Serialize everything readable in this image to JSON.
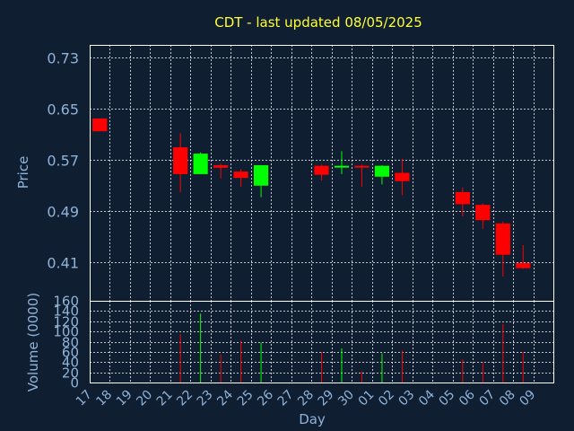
{
  "colors": {
    "background": "#0f1e31",
    "text": "#8fb3d9",
    "title": "#ffff33",
    "grid": "#ffffff",
    "up": "#00ff00",
    "down": "#ff0000"
  },
  "chart_data": {
    "type": "candlestick",
    "title": "CDT - last updated 08/05/2025",
    "xlabel": "Day",
    "ylabel": "Price",
    "volume_label": "Volume (0000)",
    "grid": true,
    "x_tick_labels": [
      "17",
      "18",
      "19",
      "20",
      "21",
      "22",
      "23",
      "24",
      "25",
      "26",
      "27",
      "28",
      "29",
      "30",
      "01",
      "02",
      "03",
      "04",
      "05",
      "06",
      "07",
      "08",
      "09"
    ],
    "price_ylim": [
      0.35,
      0.75
    ],
    "price_ticks": [
      0.41,
      0.49,
      0.57,
      0.65,
      0.73
    ],
    "volume_ylim": [
      0,
      160
    ],
    "volume_ticks": [
      0,
      20,
      40,
      60,
      80,
      100,
      120,
      140,
      160
    ],
    "candles": [
      {
        "day": "17",
        "open": 0.635,
        "close": 0.615,
        "high": 0.635,
        "low": 0.615,
        "volume": 0
      },
      {
        "day": "21",
        "open": 0.59,
        "close": 0.548,
        "high": 0.612,
        "low": 0.52,
        "volume": 95
      },
      {
        "day": "22",
        "open": 0.548,
        "close": 0.58,
        "high": 0.582,
        "low": 0.548,
        "volume": 135
      },
      {
        "day": "23",
        "open": 0.562,
        "close": 0.558,
        "high": 0.564,
        "low": 0.541,
        "volume": 55
      },
      {
        "day": "24",
        "open": 0.552,
        "close": 0.542,
        "high": 0.556,
        "low": 0.528,
        "volume": 82
      },
      {
        "day": "25",
        "open": 0.53,
        "close": 0.562,
        "high": 0.562,
        "low": 0.512,
        "volume": 78
      },
      {
        "day": "28",
        "open": 0.561,
        "close": 0.547,
        "high": 0.563,
        "low": 0.538,
        "volume": 60
      },
      {
        "day": "29",
        "open": 0.559,
        "close": 0.561,
        "high": 0.584,
        "low": 0.548,
        "volume": 67
      },
      {
        "day": "30",
        "open": 0.561,
        "close": 0.559,
        "high": 0.563,
        "low": 0.528,
        "volume": 22
      },
      {
        "day": "01",
        "open": 0.544,
        "close": 0.561,
        "high": 0.562,
        "low": 0.532,
        "volume": 57
      },
      {
        "day": "02",
        "open": 0.55,
        "close": 0.537,
        "high": 0.572,
        "low": 0.515,
        "volume": 63
      },
      {
        "day": "05",
        "open": 0.52,
        "close": 0.501,
        "high": 0.527,
        "low": 0.482,
        "volume": 45
      },
      {
        "day": "06",
        "open": 0.5,
        "close": 0.476,
        "high": 0.502,
        "low": 0.462,
        "volume": 40
      },
      {
        "day": "07",
        "open": 0.471,
        "close": 0.422,
        "high": 0.474,
        "low": 0.388,
        "volume": 115
      },
      {
        "day": "08",
        "open": 0.409,
        "close": 0.401,
        "high": 0.437,
        "low": 0.4,
        "volume": 60
      }
    ]
  }
}
